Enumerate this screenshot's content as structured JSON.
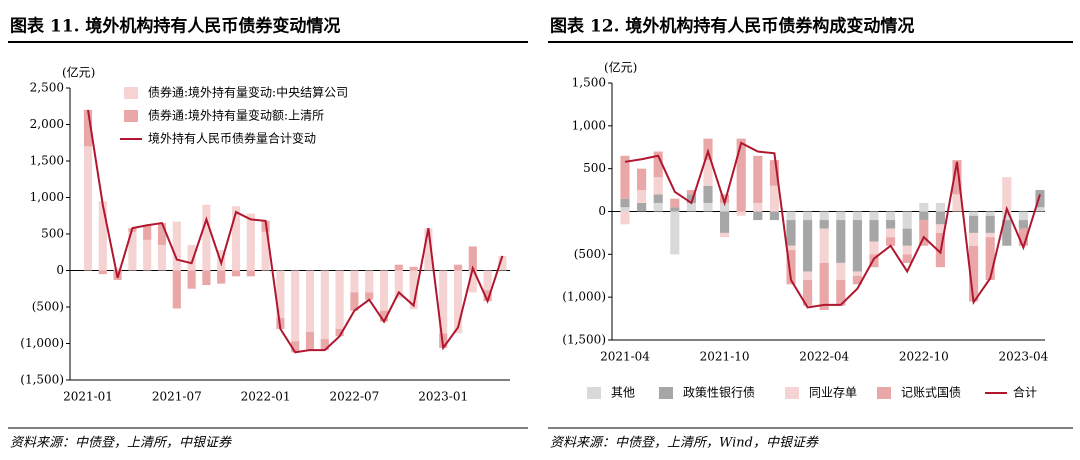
{
  "chart_data": [
    {
      "type": "bar",
      "stacked": true,
      "title": "图表 11.  境外机构持有人民币债券变动情况",
      "unit": "(亿元)",
      "source": "资料来源：中债登，上清所，中银证券",
      "legend": "upper left",
      "categories": [
        "2021-01",
        null,
        null,
        null,
        null,
        null,
        "2021-07",
        null,
        null,
        null,
        null,
        null,
        "2022-01",
        null,
        null,
        null,
        null,
        null,
        "2022-07",
        null,
        null,
        null,
        null,
        null,
        "2023-01",
        null,
        null,
        null,
        null
      ],
      "series": [
        {
          "name": "债券通:境外持有量变动:中央结算公司",
          "type": "bar",
          "color": "#f6d3d3",
          "values": [
            1700,
            950,
            30,
            530,
            420,
            350,
            670,
            350,
            900,
            280,
            880,
            780,
            530,
            -650,
            -970,
            -840,
            -940,
            -800,
            -300,
            -300,
            -550,
            -380,
            -530,
            580,
            -860,
            -860,
            -300,
            -270,
            200
          ]
        },
        {
          "name": "债券通:境外持有量变动额:上清所",
          "type": "bar",
          "color": "#e9a7a7",
          "values": [
            500,
            -50,
            -130,
            50,
            200,
            300,
            -520,
            -250,
            -200,
            -180,
            -80,
            -80,
            150,
            -150,
            -150,
            -250,
            -150,
            -100,
            -250,
            -100,
            -150,
            80,
            50,
            0,
            -200,
            80,
            330,
            -150,
            0
          ]
        },
        {
          "name": "境外持有人民币债券量合计变动",
          "type": "line",
          "color": "#b0172f",
          "values": [
            2200,
            900,
            -100,
            580,
            620,
            650,
            150,
            100,
            700,
            100,
            800,
            700,
            680,
            -800,
            -1120,
            -1090,
            -1090,
            -900,
            -550,
            -400,
            -700,
            -300,
            -480,
            580,
            -1060,
            -780,
            30,
            -420,
            200
          ]
        }
      ],
      "ylim": [
        -1500,
        2500
      ],
      "yticks": [
        {
          "value": -1500,
          "label": "(1,500)"
        },
        {
          "value": -1000,
          "label": "(1,000)"
        },
        {
          "value": -500,
          "label": "(500)"
        },
        0,
        500,
        {
          "value": 1000,
          "label": "1,000"
        },
        {
          "value": 1500,
          "label": "1,500"
        },
        {
          "value": 2000,
          "label": "2,000"
        },
        {
          "value": 2500,
          "label": "2,500"
        }
      ]
    },
    {
      "type": "bar",
      "stacked": true,
      "title": "图表 12.  境外机构持有人民币债券构成变动情况",
      "unit": "(亿元)",
      "source": "资料来源：中债登，上清所，Wind，中银证券",
      "legend": "bottom",
      "categories": [
        "2021-04",
        null,
        null,
        null,
        null,
        null,
        "2021-10",
        null,
        null,
        null,
        null,
        null,
        "2022-04",
        null,
        null,
        null,
        null,
        null,
        "2022-10",
        null,
        null,
        null,
        null,
        null,
        "2023-04",
        null
      ],
      "series": [
        {
          "name": "其他",
          "type": "bar",
          "color": "#d9d9d9",
          "values": [
            50,
            0,
            100,
            -500,
            100,
            100,
            100,
            0,
            0,
            0,
            -100,
            -100,
            -100,
            -100,
            -100,
            -100,
            -100,
            -200,
            100,
            100,
            0,
            -50,
            -50,
            -100,
            -100,
            50
          ]
        },
        {
          "name": "政策性银行债",
          "type": "bar",
          "color": "#a6a6a6",
          "values": [
            100,
            100,
            100,
            50,
            100,
            200,
            -250,
            0,
            -100,
            -100,
            -300,
            -600,
            -100,
            -500,
            -600,
            -250,
            -100,
            -200,
            -100,
            -150,
            0,
            -200,
            -200,
            -300,
            -100,
            200
          ]
        },
        {
          "name": "同业存单",
          "type": "bar",
          "color": "#f6d3d3",
          "values": [
            -150,
            150,
            200,
            0,
            0,
            300,
            -50,
            -50,
            100,
            300,
            -50,
            -100,
            -400,
            -200,
            -50,
            -150,
            -100,
            -100,
            0,
            -100,
            200,
            -150,
            -50,
            400,
            0,
            0
          ]
        },
        {
          "name": "记账式国债",
          "type": "bar",
          "color": "#e9a7a7",
          "values": [
            500,
            250,
            300,
            100,
            50,
            250,
            100,
            850,
            550,
            300,
            -400,
            -300,
            -550,
            -300,
            -100,
            -150,
            -100,
            -100,
            -300,
            -400,
            400,
            -650,
            -500,
            0,
            -200,
            0
          ]
        },
        {
          "name": "合计",
          "type": "line",
          "color": "#b0172f",
          "values": [
            580,
            610,
            650,
            230,
            100,
            700,
            100,
            800,
            700,
            680,
            -800,
            -1120,
            -1090,
            -1090,
            -900,
            -550,
            -400,
            -700,
            -300,
            -480,
            580,
            -1060,
            -780,
            30,
            -420,
            200
          ]
        }
      ],
      "ylim": [
        -1500,
        1500
      ],
      "yticks": [
        {
          "value": -1500,
          "label": "(1,500)"
        },
        {
          "value": -1000,
          "label": "(1,000)"
        },
        {
          "value": -500,
          "label": "(500)"
        },
        0,
        500,
        {
          "value": 1000,
          "label": "1,000"
        },
        {
          "value": 1500,
          "label": "1,500"
        }
      ]
    }
  ]
}
